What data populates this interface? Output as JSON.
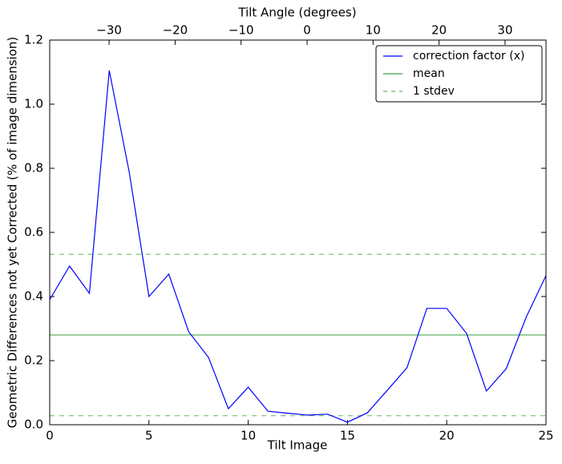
{
  "chart_data": {
    "type": "line",
    "xlabel": "Tilt Image",
    "x2label": "Tilt Angle (degrees)",
    "ylabel": "Geometric Differences not yet Corrected (% of image dimension)",
    "x": [
      0,
      1,
      2,
      3,
      4,
      5,
      6,
      7,
      8,
      9,
      10,
      11,
      12,
      13,
      14,
      15,
      16,
      17,
      18,
      19,
      20,
      21,
      22,
      23,
      24,
      25
    ],
    "series": [
      {
        "name": "correction factor (x)",
        "color": "#0000ff",
        "values": [
          0.39,
          0.495,
          0.41,
          1.105,
          0.79,
          0.4,
          0.47,
          0.29,
          0.21,
          0.05,
          0.117,
          0.042,
          0.036,
          0.03,
          0.033,
          0.008,
          0.037,
          0.107,
          0.178,
          0.363,
          0.363,
          0.285,
          0.105,
          0.175,
          0.335,
          0.465
        ]
      }
    ],
    "mean": {
      "name": "mean",
      "color": "#3a9e3a",
      "value": 0.28
    },
    "stdev": {
      "name": "1 stdev",
      "color": "#5cb85c",
      "values": [
        0.028,
        0.532
      ]
    },
    "xlim": [
      0,
      25
    ],
    "xticks": [
      0,
      5,
      10,
      15,
      20,
      25
    ],
    "x2lim": [
      -39,
      36.2
    ],
    "x2ticks": [
      {
        "value": -30,
        "label": "−30"
      },
      {
        "value": -20,
        "label": "−20"
      },
      {
        "value": -10,
        "label": "−10"
      },
      0,
      10,
      20,
      30
    ],
    "ylim": [
      0,
      1.2
    ],
    "yticks": [
      {
        "value": 0,
        "label": "0.0"
      },
      0.2,
      0.4,
      0.6,
      0.8,
      {
        "value": 1,
        "label": "1.0"
      },
      1.2
    ],
    "legend": "upper right"
  }
}
